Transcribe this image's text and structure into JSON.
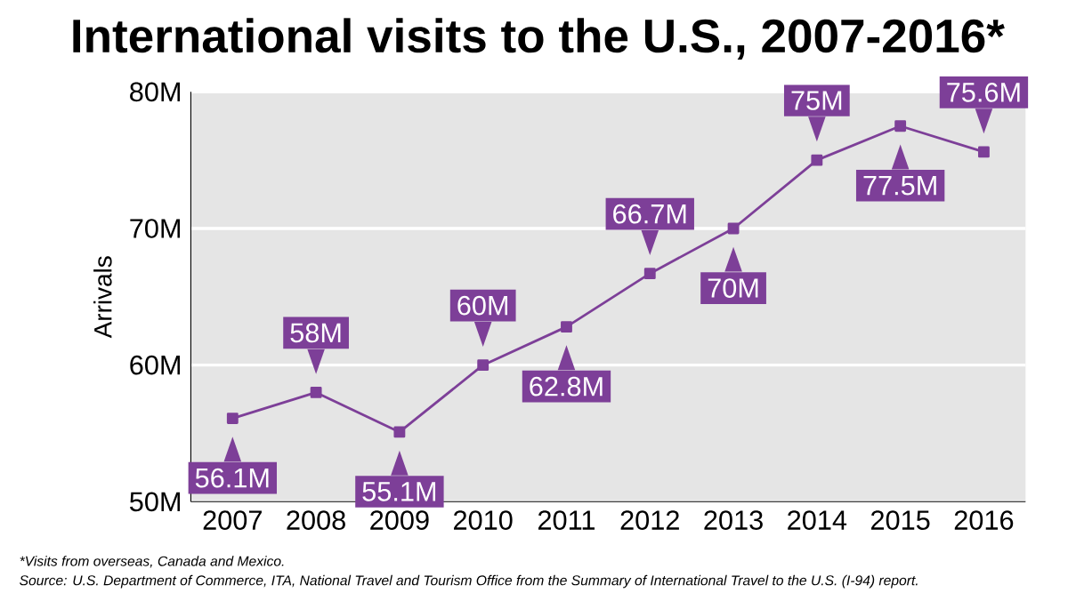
{
  "chart_data": {
    "type": "line",
    "title": "International visits to the U.S., 2007-2016*",
    "ylabel": "Arrivals",
    "categories": [
      "2007",
      "2008",
      "2009",
      "2010",
      "2011",
      "2012",
      "2013",
      "2014",
      "2015",
      "2016"
    ],
    "series": [
      {
        "color": "#7d3f98",
        "values": [
          56.1,
          58,
          55.1,
          60,
          62.8,
          66.7,
          70,
          75,
          77.5,
          75.6
        ],
        "value_labels": [
          "56.1M",
          "58M",
          "55.1M",
          "60M",
          "62.8M",
          "66.7M",
          "70M",
          "75M",
          "77.5M",
          "75.6M"
        ]
      }
    ],
    "ylim": [
      50,
      80
    ],
    "yticks": [
      {
        "value": 50,
        "label": "50M"
      },
      {
        "value": 60,
        "label": "60M"
      },
      {
        "value": 70,
        "label": "70M"
      },
      {
        "value": 80,
        "label": "80M"
      }
    ],
    "grid": "y",
    "marker": "square",
    "line_style": "solid",
    "annotations": [
      "*Visits from overseas, Canada and Mexico.",
      "Source: U.S. Department of Commerce, ITA, National Travel and Tourism Office from the Summary of International Travel to the U.S. (I-94) report."
    ]
  }
}
